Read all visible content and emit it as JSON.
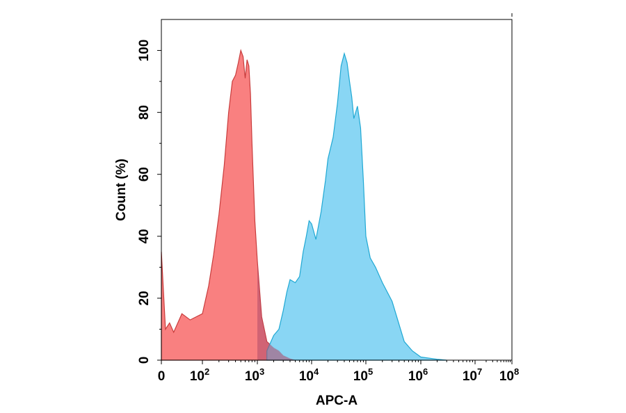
{
  "chart_data": {
    "type": "area",
    "title": "",
    "xlabel": "APC-A",
    "ylabel": "Count (%)",
    "x_scale": "biexponential-log",
    "xlim": [
      0,
      100000000
    ],
    "ylim": [
      0,
      110
    ],
    "grid": false,
    "x_ticks": [
      {
        "base": "0",
        "exp": ""
      },
      {
        "base": "10",
        "exp": "2"
      },
      {
        "base": "10",
        "exp": "3"
      },
      {
        "base": "10",
        "exp": "4"
      },
      {
        "base": "10",
        "exp": "5"
      },
      {
        "base": "10",
        "exp": "6"
      },
      {
        "base": "10",
        "exp": "7"
      },
      {
        "base": "10",
        "exp": "8"
      }
    ],
    "y_ticks": [
      "0",
      "20",
      "40",
      "60",
      "80",
      "100"
    ],
    "series": [
      {
        "color": "#f98080",
        "stroke": "#c83c3c",
        "x": [
          0,
          10,
          20,
          30,
          50,
          70,
          100,
          130,
          160,
          200,
          250,
          300,
          350,
          400,
          450,
          500,
          550,
          600,
          650,
          700,
          750,
          800,
          900,
          1000,
          1200,
          1500,
          2000,
          2500,
          3000,
          4000,
          5000
        ],
        "y": [
          35,
          10,
          12,
          9,
          15,
          13,
          15,
          24,
          34,
          47,
          63,
          80,
          90,
          92,
          96,
          100,
          98,
          91,
          97,
          95,
          86,
          70,
          45,
          32,
          14,
          6,
          4,
          3,
          1.5,
          0.5,
          0
        ]
      },
      {
        "color": "#7fd3f3",
        "stroke": "#1fa8d3",
        "x": [
          1500,
          2000,
          2500,
          3000,
          3500,
          4000,
          5000,
          6000,
          7000,
          8000,
          9000,
          10000,
          12000,
          15000,
          18000,
          20000,
          25000,
          30000,
          35000,
          40000,
          45000,
          50000,
          55000,
          60000,
          70000,
          80000,
          90000,
          100000,
          120000,
          150000,
          200000,
          300000,
          500000,
          700000,
          1000000,
          2000000,
          3000000
        ],
        "y": [
          3,
          8,
          10,
          16,
          22,
          26,
          25,
          27,
          35,
          40,
          45,
          44,
          39,
          48,
          58,
          65,
          72,
          83,
          95,
          99,
          96,
          90,
          85,
          78,
          82,
          75,
          58,
          40,
          33,
          30,
          25,
          19,
          6,
          3,
          1,
          0.3,
          0
        ]
      }
    ]
  }
}
